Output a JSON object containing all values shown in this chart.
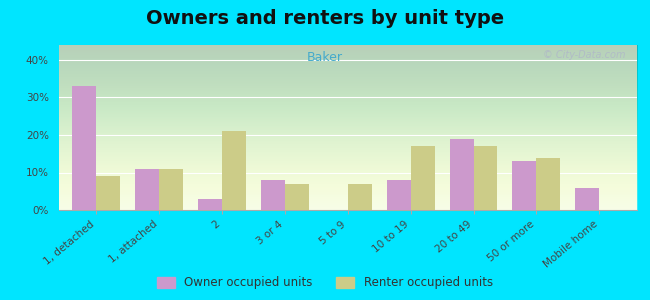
{
  "title": "Owners and renters by unit type",
  "subtitle": "Baker",
  "categories": [
    "1, detached",
    "1, attached",
    "2",
    "3 or 4",
    "5 to 9",
    "10 to 19",
    "20 to 49",
    "50 or more",
    "Mobile home"
  ],
  "owner_values": [
    33,
    11,
    3,
    8,
    0,
    8,
    19,
    13,
    6
  ],
  "renter_values": [
    9,
    11,
    21,
    7,
    7,
    17,
    17,
    14,
    0
  ],
  "owner_color": "#cc99cc",
  "renter_color": "#cccc88",
  "bar_width": 0.38,
  "ylim": [
    0,
    44
  ],
  "yticks": [
    0,
    10,
    20,
    30,
    40
  ],
  "ytick_labels": [
    "0%",
    "10%",
    "20%",
    "30%",
    "40%"
  ],
  "outer_bg": "#00e5ff",
  "grid_color": "#ffffff",
  "title_fontsize": 14,
  "subtitle_fontsize": 9,
  "tick_fontsize": 7.5,
  "legend_fontsize": 8.5,
  "watermark": "© City-Data.com",
  "subtitle_color": "#44aacc",
  "title_color": "#111111"
}
